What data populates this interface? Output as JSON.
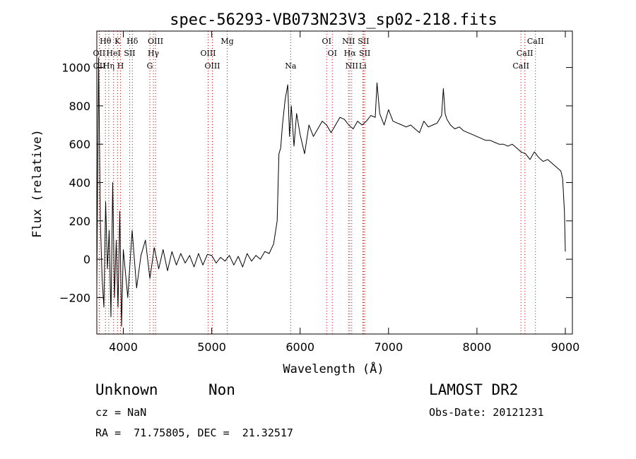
{
  "chart_data": {
    "type": "line",
    "title": "spec-56293-VB073N23V3_sp02-218.fits",
    "xlabel": "Wavelength (Å)",
    "ylabel": "Flux (relative)",
    "xlim": [
      3700,
      9080
    ],
    "ylim": [
      -390,
      1190
    ],
    "xticks": [
      4000,
      5000,
      6000,
      7000,
      8000,
      9000
    ],
    "xtick_labels": [
      "4000",
      "5000",
      "6000",
      "7000",
      "8000",
      "9000"
    ],
    "yticks": [
      -200,
      0,
      200,
      400,
      600,
      800,
      1000
    ],
    "ytick_labels": [
      "−200",
      "0",
      "200",
      "400",
      "600",
      "800",
      "1000"
    ],
    "grid": false,
    "series": [
      {
        "x": [
          3700,
          3720,
          3740,
          3760,
          3780,
          3800,
          3820,
          3840,
          3860,
          3880,
          3900,
          3920,
          3940,
          3960,
          3980,
          4000,
          4050,
          4100,
          4150,
          4200,
          4250,
          4300,
          4350,
          4400,
          4450,
          4500,
          4550,
          4600,
          4650,
          4700,
          4750,
          4800,
          4850,
          4900,
          4950,
          5000,
          5050,
          5100,
          5150,
          5200,
          5250,
          5300,
          5350,
          5400,
          5450,
          5500,
          5550,
          5600,
          5650,
          5700,
          5740,
          5760,
          5780,
          5800,
          5830,
          5860,
          5880,
          5900,
          5930,
          5960,
          6000,
          6050,
          6100,
          6150,
          6200,
          6250,
          6300,
          6350,
          6400,
          6450,
          6500,
          6550,
          6600,
          6650,
          6700,
          6750,
          6800,
          6850,
          6870,
          6900,
          6950,
          7000,
          7050,
          7100,
          7150,
          7200,
          7250,
          7300,
          7350,
          7400,
          7450,
          7500,
          7550,
          7600,
          7620,
          7640,
          7660,
          7700,
          7750,
          7800,
          7850,
          7900,
          7950,
          8000,
          8050,
          8100,
          8150,
          8200,
          8250,
          8300,
          8350,
          8400,
          8450,
          8500,
          8550,
          8600,
          8650,
          8700,
          8750,
          8800,
          8850,
          8900,
          8950,
          8970,
          8990,
          9000
        ],
        "y": [
          -150,
          1050,
          200,
          -100,
          -250,
          300,
          -50,
          150,
          -300,
          400,
          -200,
          100,
          -250,
          250,
          -350,
          50,
          -200,
          150,
          -150,
          20,
          100,
          -100,
          60,
          -50,
          50,
          -60,
          40,
          -30,
          30,
          -20,
          20,
          -40,
          30,
          -30,
          25,
          20,
          -20,
          10,
          -10,
          20,
          -30,
          15,
          -40,
          30,
          -10,
          20,
          0,
          40,
          30,
          80,
          200,
          550,
          580,
          700,
          830,
          910,
          640,
          800,
          590,
          760,
          650,
          550,
          700,
          640,
          680,
          720,
          700,
          660,
          700,
          740,
          730,
          700,
          680,
          720,
          700,
          720,
          750,
          740,
          920,
          760,
          700,
          780,
          720,
          710,
          700,
          690,
          700,
          680,
          660,
          720,
          690,
          700,
          710,
          750,
          890,
          760,
          730,
          700,
          680,
          690,
          670,
          660,
          650,
          640,
          630,
          620,
          620,
          610,
          600,
          600,
          590,
          600,
          580,
          560,
          550,
          520,
          560,
          530,
          510,
          520,
          500,
          480,
          460,
          420,
          250,
          40
        ]
      }
    ],
    "lines": [
      {
        "label": "Hθ",
        "wl": 3798,
        "row": 0
      },
      {
        "label": "K",
        "wl": 3934,
        "row": 0
      },
      {
        "label": "Hδ",
        "wl": 4102,
        "row": 0
      },
      {
        "label": "OIII",
        "wl": 4364,
        "row": 0
      },
      {
        "label": "Mg",
        "wl": 5175,
        "row": 0
      },
      {
        "label": "OI",
        "wl": 6300,
        "row": 0
      },
      {
        "label": "NII",
        "wl": 6548,
        "row": 0
      },
      {
        "label": "SII",
        "wl": 6717,
        "row": 0
      },
      {
        "label": "CaII",
        "wl": 8662,
        "row": 0
      },
      {
        "label": "OII",
        "wl": 3727,
        "row": 1
      },
      {
        "label": "HeI",
        "wl": 3889,
        "row": 1
      },
      {
        "label": "SII",
        "wl": 4072,
        "row": 1
      },
      {
        "label": "Hγ",
        "wl": 4340,
        "row": 1
      },
      {
        "label": "OIII",
        "wl": 4959,
        "row": 1
      },
      {
        "label": "OI",
        "wl": 6364,
        "row": 1
      },
      {
        "label": "Hα",
        "wl": 6563,
        "row": 1
      },
      {
        "label": "SII",
        "wl": 6731,
        "row": 1
      },
      {
        "label": "CaII",
        "wl": 8542,
        "row": 1
      },
      {
        "label": "OII",
        "wl": 3729,
        "row": 2
      },
      {
        "label": "Hη",
        "wl": 3835,
        "row": 2
      },
      {
        "label": "H",
        "wl": 3968,
        "row": 2
      },
      {
        "label": "G",
        "wl": 4300,
        "row": 2
      },
      {
        "label": "OIII",
        "wl": 5007,
        "row": 2
      },
      {
        "label": "Na",
        "wl": 5893,
        "row": 2
      },
      {
        "label": "NII",
        "wl": 6584,
        "row": 2
      },
      {
        "label": "Li",
        "wl": 6708,
        "row": 2
      },
      {
        "label": "CaII",
        "wl": 8498,
        "row": 2
      }
    ],
    "line_color": "#cc0000"
  },
  "info": {
    "class": "Unknown",
    "subclass": "Non",
    "survey": "LAMOST DR2",
    "cz": "cz = NaN",
    "obsdate": "Obs-Date: 20121231",
    "radec": "RA =  71.75805, DEC =  21.32517"
  }
}
